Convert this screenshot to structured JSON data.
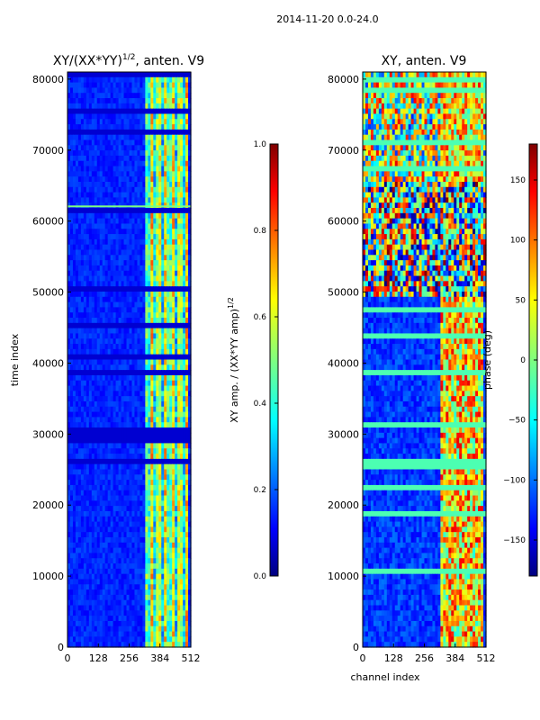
{
  "figure_title": "2014-11-20 0.0-24.0",
  "chart_data": [
    {
      "type": "heatmap",
      "title": "XY/(XX*YY)",
      "title_superscript": "1/2",
      "title_suffix": ", anten. V9",
      "xlabel": "",
      "ylabel": "time index",
      "xlim": [
        0,
        512
      ],
      "ylim": [
        0,
        81000
      ],
      "xticks": [
        "0",
        "128",
        "256",
        "384",
        "512"
      ],
      "yticks": [
        "0",
        "10000",
        "20000",
        "30000",
        "40000",
        "50000",
        "60000",
        "70000",
        "80000"
      ],
      "colorbar": {
        "label": "XY amp. / (XX*YY amp)",
        "label_superscript": "1/2",
        "range": [
          0.0,
          1.0
        ],
        "ticks": [
          "0.0",
          "0.2",
          "0.4",
          "0.6",
          "0.8",
          "1.0"
        ]
      },
      "description_bands": "mostly low amplitude (~0.1-0.2) across channels 0-320; bright vertical stripes (~0.4-0.7) at channels ~320-500"
    },
    {
      "type": "heatmap",
      "title": "XY, anten. V9",
      "xlabel": "channel index",
      "ylabel": "",
      "xlim": [
        0,
        512
      ],
      "ylim": [
        0,
        81000
      ],
      "xticks": [
        "0",
        "128",
        "256",
        "384",
        "512"
      ],
      "yticks": [
        "0",
        "10000",
        "20000",
        "30000",
        "40000",
        "50000",
        "60000",
        "70000",
        "80000"
      ],
      "colorbar": {
        "label": "phase (deg)",
        "range": [
          -180,
          180
        ],
        "ticks": [
          "−150",
          "−100",
          "−50",
          "0",
          "50",
          "100",
          "150"
        ]
      },
      "description_bands": "phase mostly ~-150 at channels 0-320 with noisy region between 50000-66000; varied phase at channels ~320-500"
    }
  ],
  "colormap": [
    "#00007f",
    "#0000ff",
    "#007fff",
    "#00ffff",
    "#7fff7f",
    "#ffff00",
    "#ff7f00",
    "#ff0000",
    "#7f0000"
  ]
}
